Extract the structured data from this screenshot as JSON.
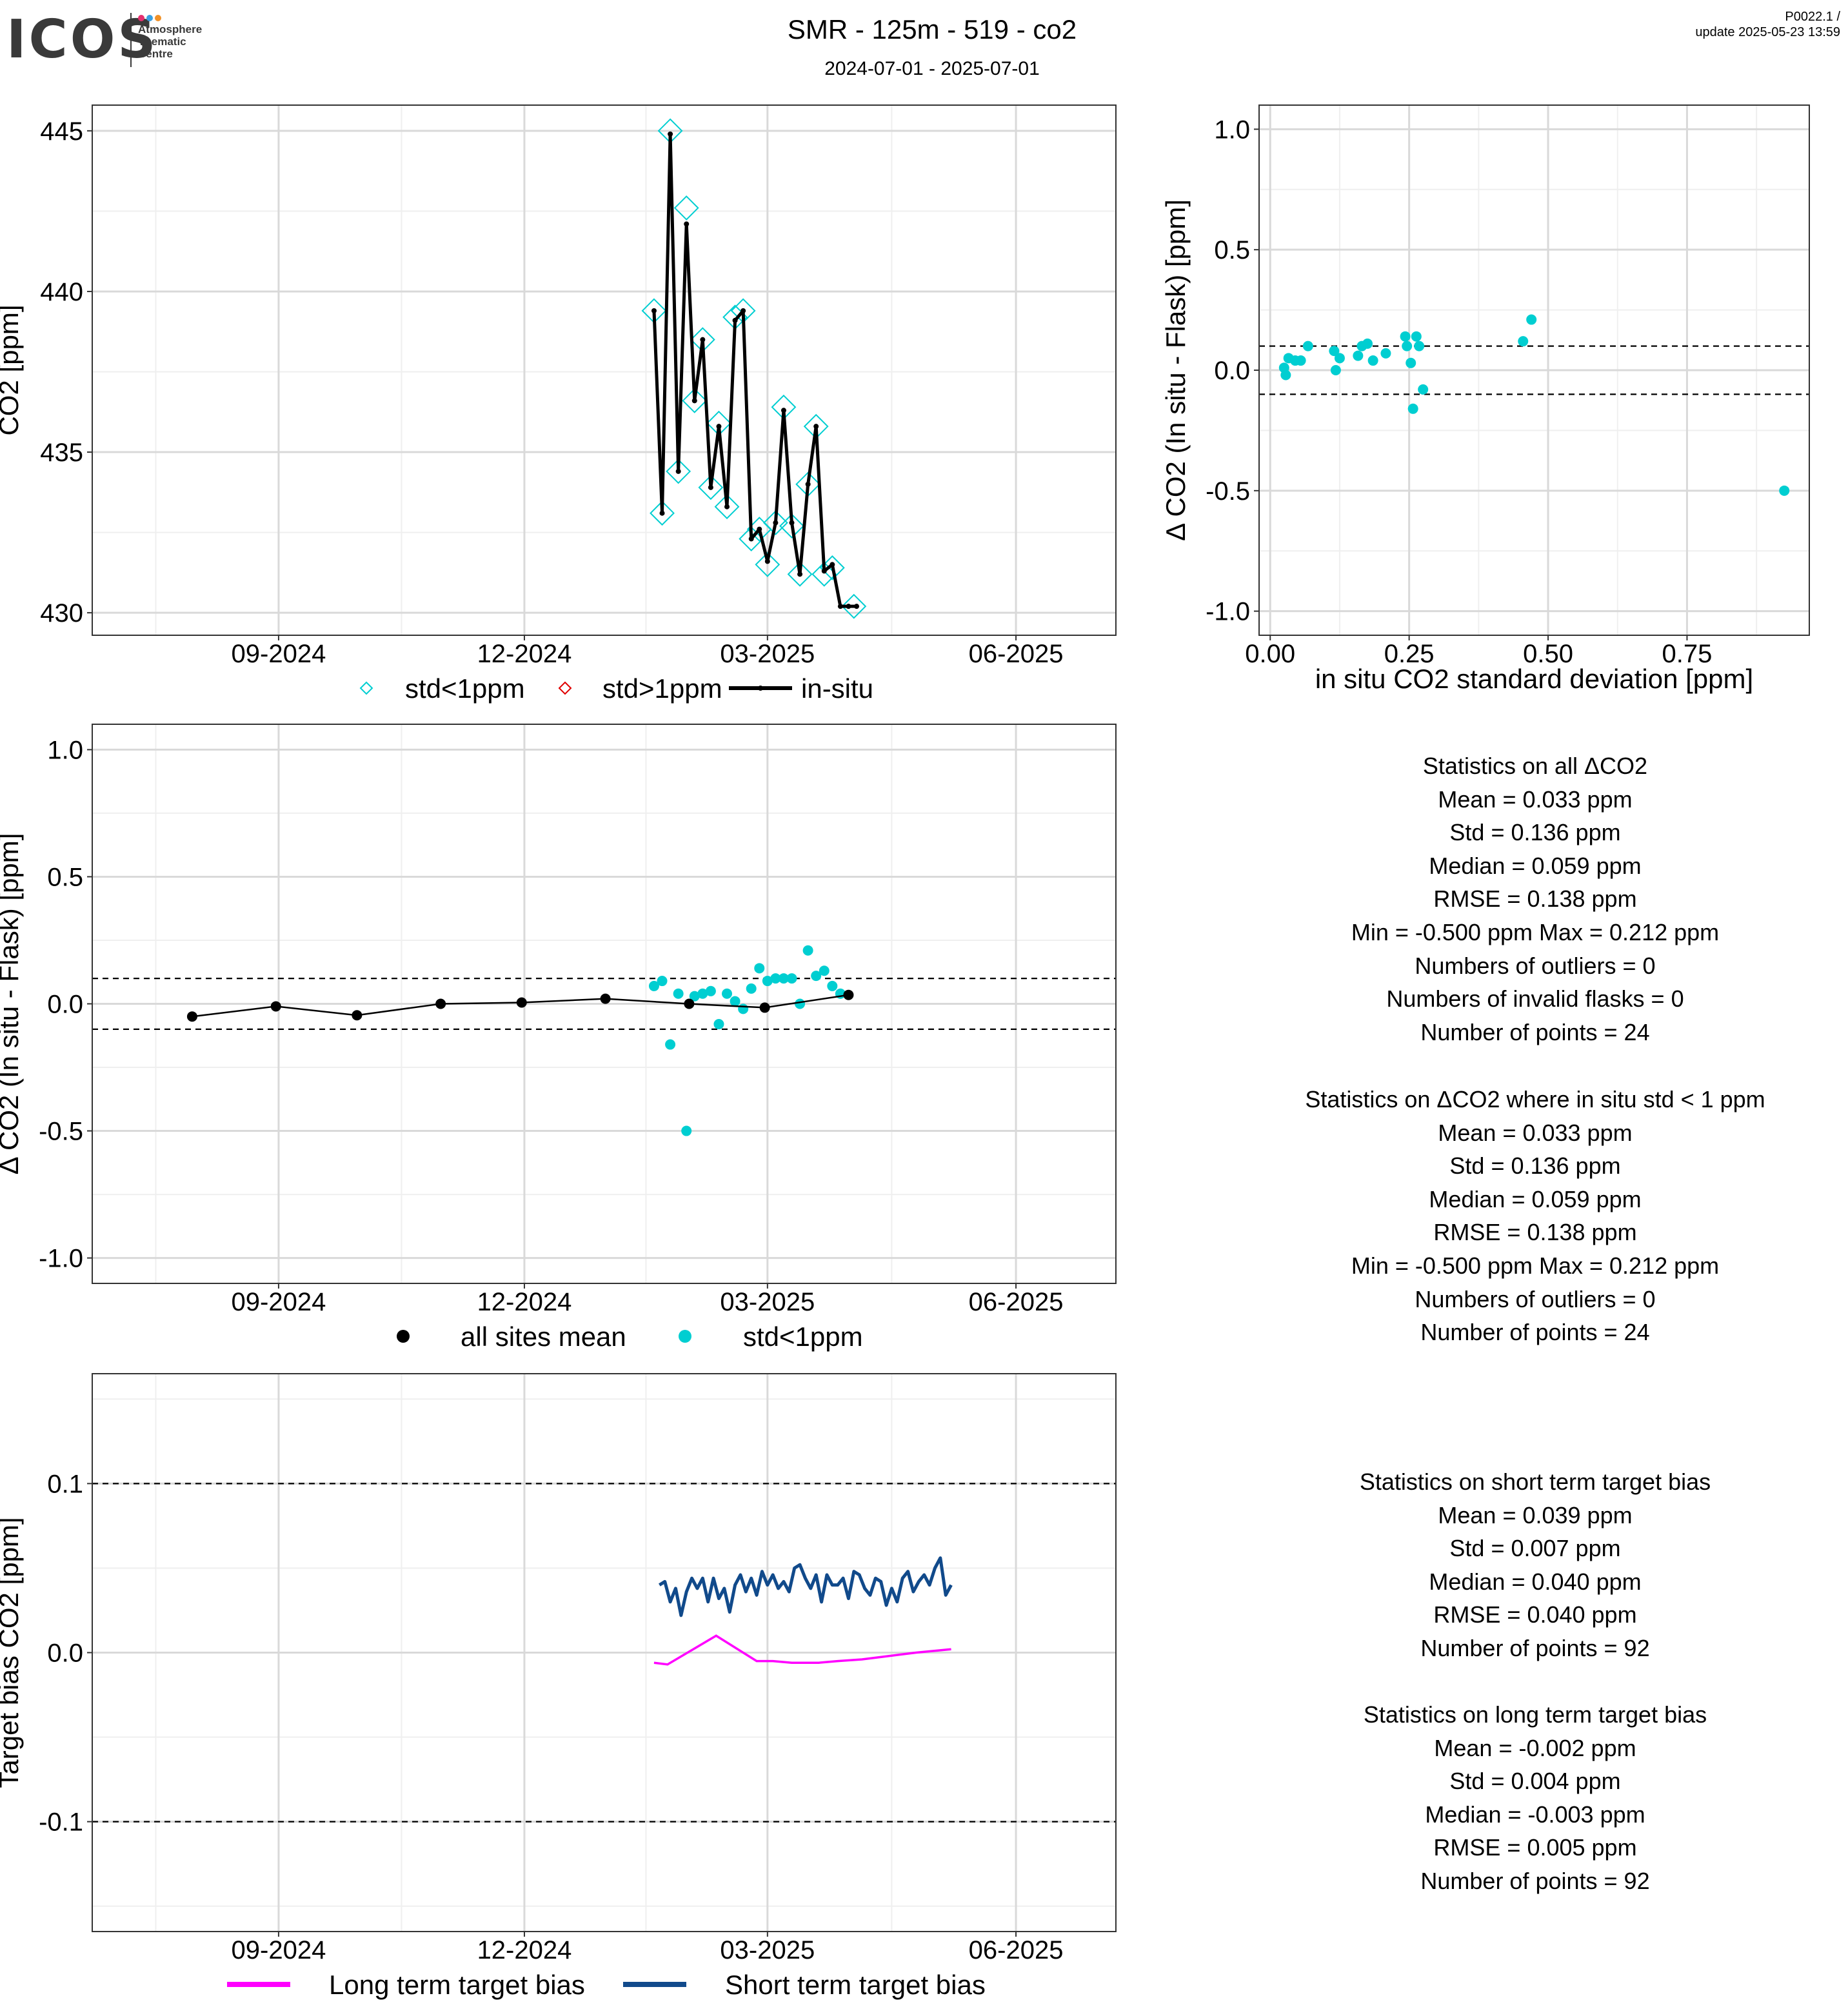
{
  "header": {
    "logo_word": "ICOS",
    "logo_lines": [
      "Atmosphere",
      "Thematic",
      "Centre"
    ],
    "title": "SMR - 125m - 519 - co2",
    "period": "2024-07-01 - 2025-07-01",
    "product_code": "P0022.1 /",
    "update": "update  2025-05-23 13:59",
    "logo_dot_colors": [
      "#e5306f",
      "#3aa0e2",
      "#f29127"
    ]
  },
  "colors": {
    "cyan": "#00CED1",
    "black": "#000000",
    "red": "#E00000",
    "magenta": "#FF00FF",
    "navy": "#114A8B",
    "grid_major": "#d9d9d9",
    "grid_minor": "#efefef"
  },
  "chart_data": [
    {
      "id": "timeseries",
      "type": "line",
      "ylabel": "CO2 [ppm]",
      "xticks": [
        "09-2024",
        "12-2024",
        "03-2025",
        "06-2025"
      ],
      "xtick_dates": [
        "2024-09-01",
        "2024-12-01",
        "2025-03-01",
        "2025-06-01"
      ],
      "xlim": [
        "2024-06-24",
        "2025-07-08"
      ],
      "yticks": [
        "430",
        "435",
        "440",
        "445"
      ],
      "ytick_values": [
        430,
        435,
        440,
        445
      ],
      "ylim": [
        429.3,
        445.8
      ],
      "grid": true,
      "legend": [
        "std<1ppm",
        "std>1ppm",
        "in-situ"
      ],
      "legend_position": "bottom",
      "series": [
        {
          "name": "in-situ",
          "style": "line",
          "x": [
            "2025-01-18",
            "2025-01-21",
            "2025-01-24",
            "2025-01-27",
            "2025-01-30",
            "2025-02-02",
            "2025-02-05",
            "2025-02-08",
            "2025-02-11",
            "2025-02-14",
            "2025-02-17",
            "2025-02-20",
            "2025-02-23",
            "2025-02-26",
            "2025-03-01",
            "2025-03-04",
            "2025-03-07",
            "2025-03-10",
            "2025-03-13",
            "2025-03-16",
            "2025-03-19",
            "2025-03-22",
            "2025-03-25",
            "2025-03-28",
            "2025-03-31",
            "2025-04-03"
          ],
          "y": [
            439.4,
            433.1,
            444.9,
            434.4,
            442.1,
            436.6,
            438.5,
            433.9,
            435.8,
            433.3,
            439.1,
            439.4,
            432.3,
            432.6,
            431.6,
            432.8,
            436.3,
            432.8,
            431.2,
            434.0,
            435.8,
            431.3,
            431.5,
            430.2,
            430.2,
            430.2
          ]
        },
        {
          "name": "std<1ppm",
          "style": "diamond",
          "x": [
            "2025-01-18",
            "2025-01-21",
            "2025-01-24",
            "2025-01-27",
            "2025-01-30",
            "2025-02-02",
            "2025-02-05",
            "2025-02-08",
            "2025-02-11",
            "2025-02-14",
            "2025-02-17",
            "2025-02-20",
            "2025-02-23",
            "2025-02-26",
            "2025-03-01",
            "2025-03-04",
            "2025-03-07",
            "2025-03-10",
            "2025-03-13",
            "2025-03-16",
            "2025-03-19",
            "2025-03-22",
            "2025-03-25",
            "2025-04-02"
          ],
          "y": [
            439.4,
            433.1,
            445.0,
            434.4,
            442.6,
            436.6,
            438.5,
            433.9,
            435.9,
            433.3,
            439.2,
            439.4,
            432.3,
            432.6,
            431.5,
            432.8,
            436.4,
            432.7,
            431.2,
            434.0,
            435.8,
            431.2,
            431.4,
            430.2
          ]
        }
      ]
    },
    {
      "id": "delta_vs_std",
      "type": "scatter",
      "xlabel": "in situ CO2 standard deviation [ppm]",
      "ylabel": "Δ CO2 (In situ - Flask) [ppm]",
      "xticks": [
        "0.00",
        "0.25",
        "0.50",
        "0.75"
      ],
      "xtick_values": [
        0,
        0.25,
        0.5,
        0.75
      ],
      "xlim": [
        -0.02,
        0.97
      ],
      "yticks": [
        "-1.0",
        "-0.5",
        "0.0",
        "0.5",
        "1.0"
      ],
      "ytick_values": [
        -1,
        -0.5,
        0,
        0.5,
        1
      ],
      "ylim": [
        -1.1,
        1.1
      ],
      "hlines": [
        0.1,
        -0.1
      ],
      "grid": true,
      "series": [
        {
          "name": "std<1ppm",
          "x": [
            0.025,
            0.028,
            0.033,
            0.045,
            0.055,
            0.068,
            0.115,
            0.118,
            0.125,
            0.158,
            0.165,
            0.175,
            0.185,
            0.208,
            0.243,
            0.246,
            0.253,
            0.257,
            0.263,
            0.268,
            0.275,
            0.455,
            0.47,
            0.925
          ],
          "y": [
            0.01,
            -0.02,
            0.05,
            0.04,
            0.04,
            0.1,
            0.08,
            0.0,
            0.05,
            0.06,
            0.1,
            0.11,
            0.04,
            0.07,
            0.14,
            0.1,
            0.03,
            -0.16,
            0.14,
            0.1,
            -0.08,
            0.12,
            0.21,
            -0.5
          ]
        }
      ]
    },
    {
      "id": "delta_timeseries",
      "type": "scatter",
      "ylabel": "Δ CO2 (In situ - Flask) [ppm]",
      "xticks": [
        "09-2024",
        "12-2024",
        "03-2025",
        "06-2025"
      ],
      "xtick_dates": [
        "2024-09-01",
        "2024-12-01",
        "2025-03-01",
        "2025-06-01"
      ],
      "xlim": [
        "2024-06-24",
        "2025-07-08"
      ],
      "yticks": [
        "-1.0",
        "-0.5",
        "0.0",
        "0.5",
        "1.0"
      ],
      "ytick_values": [
        -1,
        -0.5,
        0,
        0.5,
        1
      ],
      "ylim": [
        -1.1,
        1.1
      ],
      "hlines": [
        0.1,
        -0.1
      ],
      "grid": true,
      "legend": [
        "all sites mean",
        "std<1ppm"
      ],
      "legend_position": "bottom",
      "series": [
        {
          "name": "all sites mean",
          "x": [
            "2024-07-31",
            "2024-08-31",
            "2024-09-30",
            "2024-10-31",
            "2024-11-30",
            "2024-12-31",
            "2025-01-31",
            "2025-02-28",
            "2025-03-31"
          ],
          "y": [
            -0.05,
            -0.01,
            -0.045,
            0.0,
            0.005,
            0.02,
            0.0,
            -0.015,
            0.035
          ]
        },
        {
          "name": "std<1ppm",
          "x": [
            "2025-01-18",
            "2025-01-21",
            "2025-01-24",
            "2025-01-27",
            "2025-01-30",
            "2025-02-02",
            "2025-02-05",
            "2025-02-08",
            "2025-02-11",
            "2025-02-14",
            "2025-02-17",
            "2025-02-20",
            "2025-02-23",
            "2025-02-26",
            "2025-03-01",
            "2025-03-04",
            "2025-03-07",
            "2025-03-10",
            "2025-03-13",
            "2025-03-16",
            "2025-03-19",
            "2025-03-22",
            "2025-03-25",
            "2025-03-28"
          ],
          "y": [
            0.07,
            0.09,
            -0.16,
            0.04,
            -0.5,
            0.03,
            0.04,
            0.05,
            -0.08,
            0.04,
            0.01,
            -0.02,
            0.06,
            0.14,
            0.09,
            0.1,
            0.1,
            0.1,
            0.0,
            0.21,
            0.11,
            0.13,
            0.07,
            0.04
          ]
        }
      ]
    },
    {
      "id": "target_bias",
      "type": "line",
      "ylabel": "Target bias CO2 [ppm]",
      "xticks": [
        "09-2024",
        "12-2024",
        "03-2025",
        "06-2025"
      ],
      "xtick_dates": [
        "2024-09-01",
        "2024-12-01",
        "2025-03-01",
        "2025-06-01"
      ],
      "xlim": [
        "2024-06-24",
        "2025-07-08"
      ],
      "yticks": [
        "-0.1",
        "0.0",
        "0.1"
      ],
      "ytick_values": [
        -0.1,
        0,
        0.1
      ],
      "ylim": [
        -0.165,
        0.165
      ],
      "hlines": [
        0.1,
        -0.1
      ],
      "grid": true,
      "legend": [
        "Long term target bias",
        "Short term target bias"
      ],
      "legend_position": "bottom",
      "series": [
        {
          "name": "Long term target bias",
          "x": [
            "2025-01-18",
            "2025-01-23",
            "2025-02-10",
            "2025-02-25",
            "2025-03-03",
            "2025-03-10",
            "2025-03-20",
            "2025-03-27",
            "2025-04-05",
            "2025-04-15",
            "2025-04-25",
            "2025-05-08"
          ],
          "y": [
            -0.006,
            -0.007,
            0.01,
            -0.005,
            -0.005,
            -0.006,
            -0.006,
            -0.005,
            -0.004,
            -0.002,
            0.0,
            0.002
          ]
        },
        {
          "name": "Short term target bias",
          "x": [
            "2025-01-20",
            "2025-01-22",
            "2025-01-24",
            "2025-01-26",
            "2025-01-28",
            "2025-01-30",
            "2025-02-01",
            "2025-02-03",
            "2025-02-05",
            "2025-02-07",
            "2025-02-09",
            "2025-02-11",
            "2025-02-13",
            "2025-02-15",
            "2025-02-17",
            "2025-02-19",
            "2025-02-21",
            "2025-02-23",
            "2025-02-25",
            "2025-02-27",
            "2025-03-01",
            "2025-03-03",
            "2025-03-05",
            "2025-03-07",
            "2025-03-09",
            "2025-03-11",
            "2025-03-13",
            "2025-03-15",
            "2025-03-17",
            "2025-03-19",
            "2025-03-21",
            "2025-03-23",
            "2025-03-25",
            "2025-03-27",
            "2025-03-29",
            "2025-03-31",
            "2025-04-02",
            "2025-04-04",
            "2025-04-06",
            "2025-04-08",
            "2025-04-10",
            "2025-04-12",
            "2025-04-14",
            "2025-04-16",
            "2025-04-18",
            "2025-04-20",
            "2025-04-22",
            "2025-04-24",
            "2025-04-26",
            "2025-04-28",
            "2025-04-30",
            "2025-05-02",
            "2025-05-04",
            "2025-05-06",
            "2025-05-08"
          ],
          "y": [
            0.04,
            0.042,
            0.03,
            0.038,
            0.022,
            0.036,
            0.044,
            0.038,
            0.044,
            0.03,
            0.044,
            0.032,
            0.038,
            0.024,
            0.04,
            0.046,
            0.036,
            0.044,
            0.034,
            0.048,
            0.04,
            0.046,
            0.038,
            0.042,
            0.036,
            0.05,
            0.052,
            0.044,
            0.038,
            0.046,
            0.03,
            0.046,
            0.04,
            0.04,
            0.044,
            0.032,
            0.048,
            0.046,
            0.038,
            0.034,
            0.044,
            0.042,
            0.028,
            0.038,
            0.03,
            0.044,
            0.048,
            0.036,
            0.042,
            0.046,
            0.04,
            0.05,
            0.056,
            0.034,
            0.04
          ]
        }
      ]
    }
  ],
  "stats_all": {
    "heading": "Statistics on all ΔCO2",
    "lines": [
      "Mean =  0.033 ppm",
      "Std =  0.136 ppm",
      "Median =  0.059 ppm",
      "RMSE =  0.138 ppm",
      "Min =  -0.500 ppm Max =  0.212 ppm",
      "Numbers of outliers =  0",
      "Numbers of invalid flasks =  0",
      "Number of points =  24"
    ]
  },
  "stats_std": {
    "heading": "Statistics on ΔCO2 where in situ std < 1 ppm",
    "lines": [
      "Mean =  0.033 ppm",
      "Std =  0.136 ppm",
      "Median =  0.059 ppm",
      "RMSE =  0.138 ppm",
      "Min =  -0.500 ppm Max =  0.212 ppm",
      "Numbers of outliers =  0",
      "Number of points =  24"
    ]
  },
  "stats_short": {
    "heading": "Statistics on short term target bias",
    "lines": [
      "Mean =  0.039 ppm",
      "Std =  0.007 ppm",
      "Median =  0.040 ppm",
      "RMSE =  0.040 ppm",
      "Number of points =  92"
    ]
  },
  "stats_long": {
    "heading": "Statistics on long term target bias",
    "lines": [
      "Mean =  -0.002 ppm",
      "Std =  0.004 ppm",
      "Median =  -0.003 ppm",
      "RMSE =  0.005 ppm",
      "Number of points =  92"
    ]
  }
}
